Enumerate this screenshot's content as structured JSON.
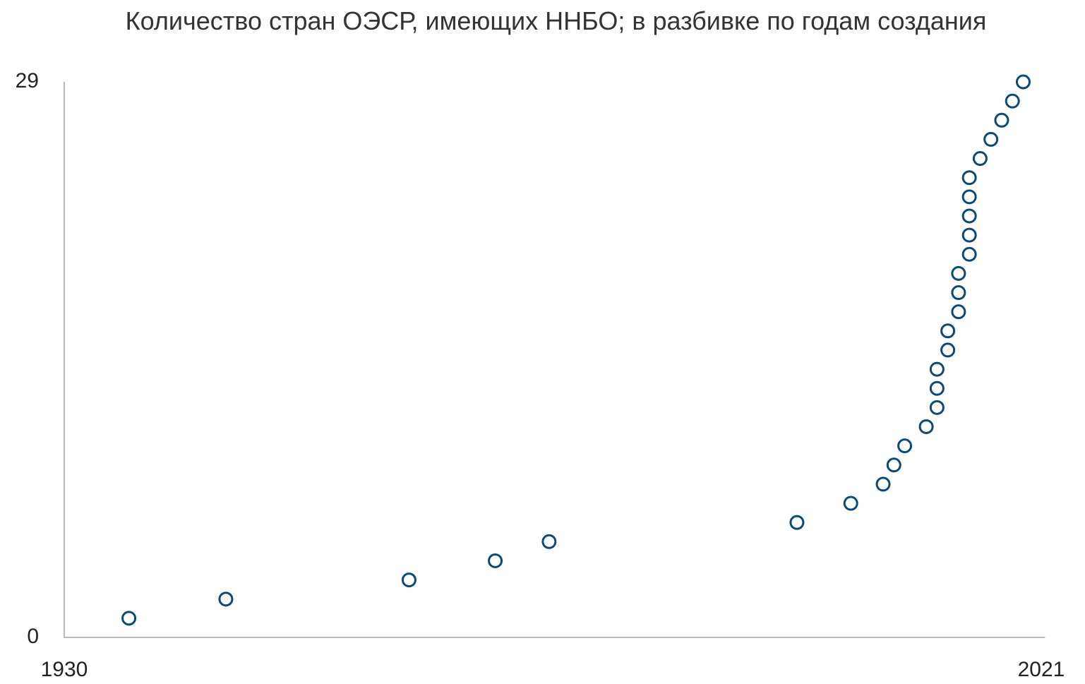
{
  "chart_data": {
    "type": "scatter",
    "title": "Количество стран ОЭСР, имеющих ННБО; в разбивке по годам создания",
    "x": [
      1936,
      1945,
      1962,
      1970,
      1975,
      1998,
      2003,
      2006,
      2007,
      2008,
      2010,
      2011,
      2011,
      2011,
      2012,
      2012,
      2013,
      2013,
      2013,
      2014,
      2014,
      2014,
      2014,
      2014,
      2015,
      2016,
      2017,
      2018,
      2019
    ],
    "values": [
      1,
      2,
      3,
      4,
      5,
      6,
      7,
      8,
      9,
      10,
      11,
      12,
      13,
      14,
      15,
      16,
      17,
      18,
      19,
      20,
      21,
      22,
      23,
      24,
      25,
      26,
      27,
      28,
      29
    ],
    "color": "#0b4a75",
    "xlim": [
      1930,
      2021
    ],
    "xticks": [
      1930,
      2021
    ],
    "ylim": [
      0,
      29
    ],
    "yticks": [
      0,
      29
    ]
  }
}
